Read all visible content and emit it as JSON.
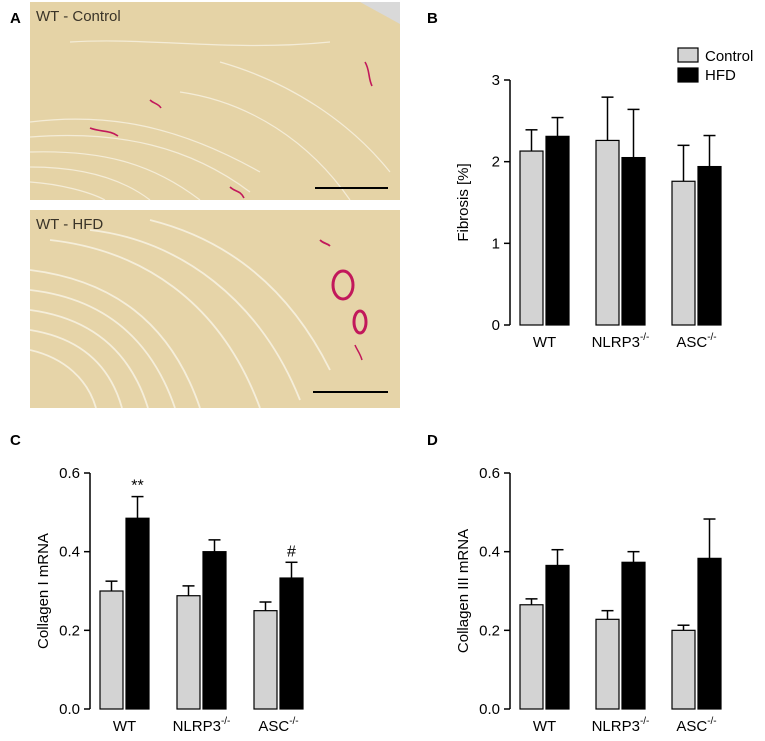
{
  "panels": {
    "a": "A",
    "b": "B",
    "c": "C",
    "d": "D"
  },
  "micrographs": [
    {
      "label": "WT - Control",
      "tissue_color": "#e5d3a6"
    },
    {
      "label": "WT - HFD",
      "tissue_color": "#e6d4a8"
    }
  ],
  "legend": {
    "control": "Control",
    "hfd": "HFD"
  },
  "colors": {
    "control": "#d3d3d3",
    "hfd": "#000000",
    "stain": "#c2185b"
  },
  "chart_data": [
    {
      "panel": "B",
      "type": "bar",
      "ylabel": "Fibrosis [%]",
      "ylim": [
        0,
        3
      ],
      "yticks": [
        "0",
        "1",
        "2",
        "3"
      ],
      "categories": [
        "WT",
        "NLRP3",
        "ASC"
      ],
      "category_superscripts": [
        "",
        "-/-",
        "-/-"
      ],
      "series": [
        {
          "name": "Control",
          "values": [
            2.13,
            2.26,
            1.76
          ],
          "errors": [
            0.26,
            0.53,
            0.44
          ]
        },
        {
          "name": "HFD",
          "values": [
            2.31,
            2.05,
            1.94
          ],
          "errors": [
            0.23,
            0.59,
            0.38
          ]
        }
      ],
      "annotations": [],
      "legend": "top-right"
    },
    {
      "panel": "C",
      "type": "bar",
      "ylabel": "Collagen I mRNA",
      "ylim": [
        0,
        0.6
      ],
      "yticks": [
        "0.0",
        "0.2",
        "0.4",
        "0.6"
      ],
      "categories": [
        "WT",
        "NLRP3",
        "ASC"
      ],
      "category_superscripts": [
        "",
        "-/-",
        "-/-"
      ],
      "series": [
        {
          "name": "Control",
          "values": [
            0.3,
            0.288,
            0.25
          ],
          "errors": [
            0.025,
            0.025,
            0.022
          ]
        },
        {
          "name": "HFD",
          "values": [
            0.485,
            0.4,
            0.333
          ],
          "errors": [
            0.055,
            0.03,
            0.04
          ]
        }
      ],
      "annotations": [
        {
          "category": 0,
          "series": 1,
          "text": "**"
        },
        {
          "category": 2,
          "series": 1,
          "text": "#"
        }
      ]
    },
    {
      "panel": "D",
      "type": "bar",
      "ylabel": "Collagen III mRNA",
      "ylim": [
        0,
        0.6
      ],
      "yticks": [
        "0.0",
        "0.2",
        "0.4",
        "0.6"
      ],
      "categories": [
        "WT",
        "NLRP3",
        "ASC"
      ],
      "category_superscripts": [
        "",
        "-/-",
        "-/-"
      ],
      "series": [
        {
          "name": "Control",
          "values": [
            0.265,
            0.228,
            0.2
          ],
          "errors": [
            0.015,
            0.022,
            0.013
          ]
        },
        {
          "name": "HFD",
          "values": [
            0.365,
            0.373,
            0.383
          ],
          "errors": [
            0.04,
            0.027,
            0.1
          ]
        }
      ],
      "annotations": []
    }
  ]
}
